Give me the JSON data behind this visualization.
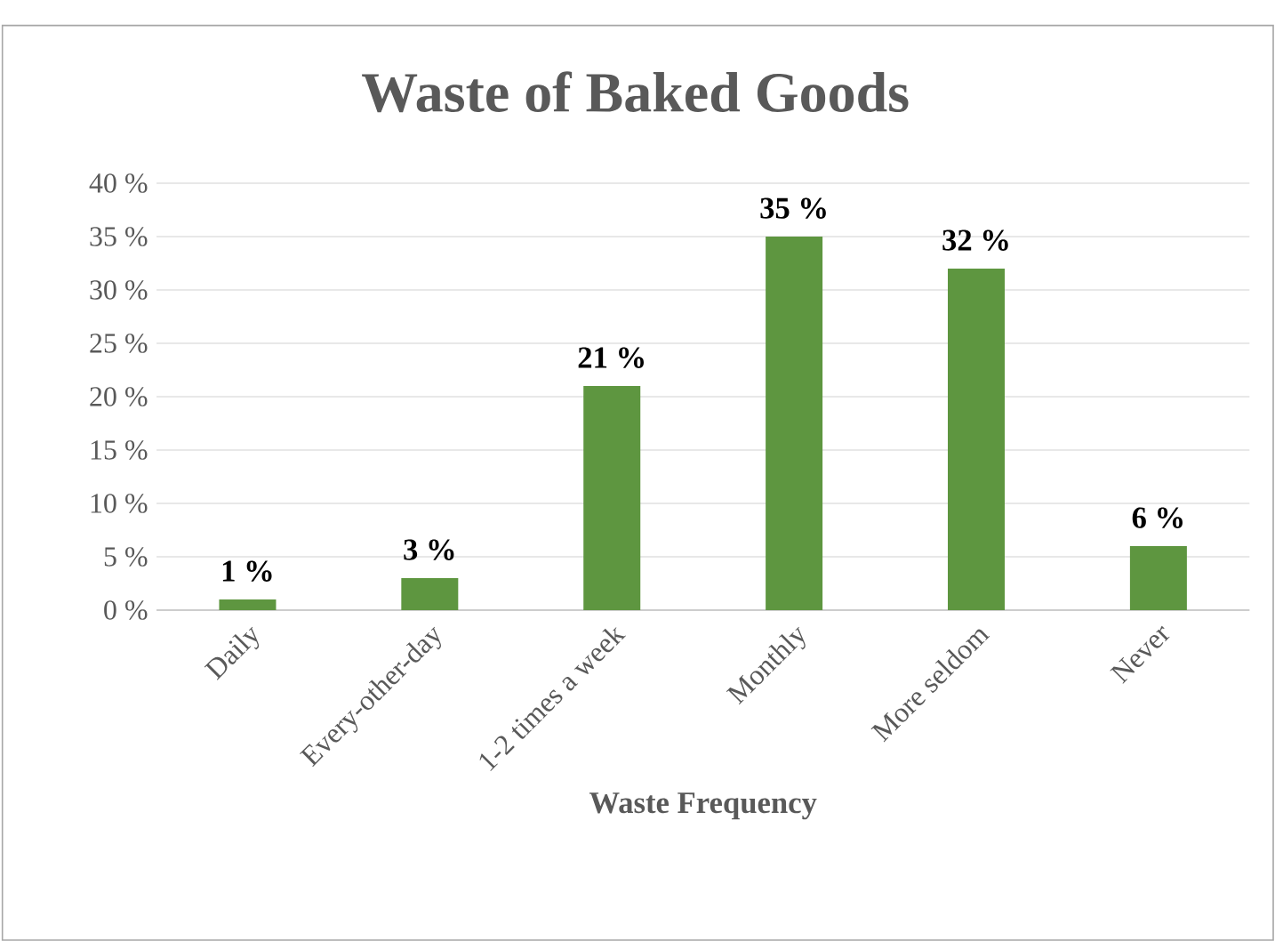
{
  "chart_data": {
    "type": "bar",
    "title": "Waste of Baked Goods",
    "xlabel": "Waste Frequency",
    "categories": [
      "Daily",
      "Every-other-day",
      "1-2 times a week",
      "Monthly",
      "More seldom",
      "Never"
    ],
    "values": [
      1,
      3,
      21,
      35,
      32,
      6
    ],
    "value_labels": [
      "1 %",
      "3 %",
      "21 %",
      "35 %",
      "32 %",
      "6 %"
    ],
    "color": "#5e9640",
    "ylim": [
      0,
      40
    ],
    "yticks": [
      {
        "value": 0,
        "label": "0 %"
      },
      {
        "value": 5,
        "label": "5 %"
      },
      {
        "value": 10,
        "label": "10 %"
      },
      {
        "value": 15,
        "label": "15 %"
      },
      {
        "value": 20,
        "label": "20 %"
      },
      {
        "value": 25,
        "label": "25 %"
      },
      {
        "value": 30,
        "label": "30 %"
      },
      {
        "value": 35,
        "label": "35 %"
      },
      {
        "value": 40,
        "label": "40 %"
      }
    ],
    "grid": "y"
  }
}
